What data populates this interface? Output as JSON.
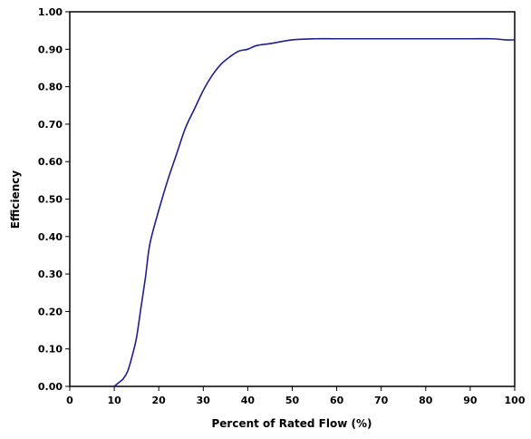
{
  "chart_data": {
    "type": "line",
    "title": "",
    "xlabel": "Percent of Rated Flow (%)",
    "ylabel": "Efficiency",
    "xlim": [
      0,
      100
    ],
    "ylim": [
      0,
      1.0
    ],
    "xticks": [
      "0",
      "10",
      "20",
      "30",
      "40",
      "50",
      "60",
      "70",
      "80",
      "90",
      "100"
    ],
    "yticks": [
      "0.00",
      "0.10",
      "0.20",
      "0.30",
      "0.40",
      "0.50",
      "0.60",
      "0.70",
      "0.80",
      "0.90",
      "1.00"
    ],
    "grid": false,
    "legend": false,
    "series": [
      {
        "color": "#1f1f8f",
        "x": [
          10,
          11,
          12,
          13,
          14,
          15,
          16,
          17,
          18,
          20,
          22,
          24,
          26,
          28,
          30,
          32,
          34,
          36,
          38,
          40,
          42,
          45,
          50,
          55,
          60,
          70,
          80,
          90,
          95,
          98,
          100
        ],
        "y": [
          0.0,
          0.01,
          0.02,
          0.04,
          0.08,
          0.13,
          0.21,
          0.29,
          0.38,
          0.47,
          0.55,
          0.62,
          0.69,
          0.74,
          0.79,
          0.83,
          0.86,
          0.88,
          0.895,
          0.9,
          0.91,
          0.915,
          0.925,
          0.928,
          0.928,
          0.928,
          0.928,
          0.928,
          0.928,
          0.925,
          0.925
        ]
      }
    ]
  }
}
